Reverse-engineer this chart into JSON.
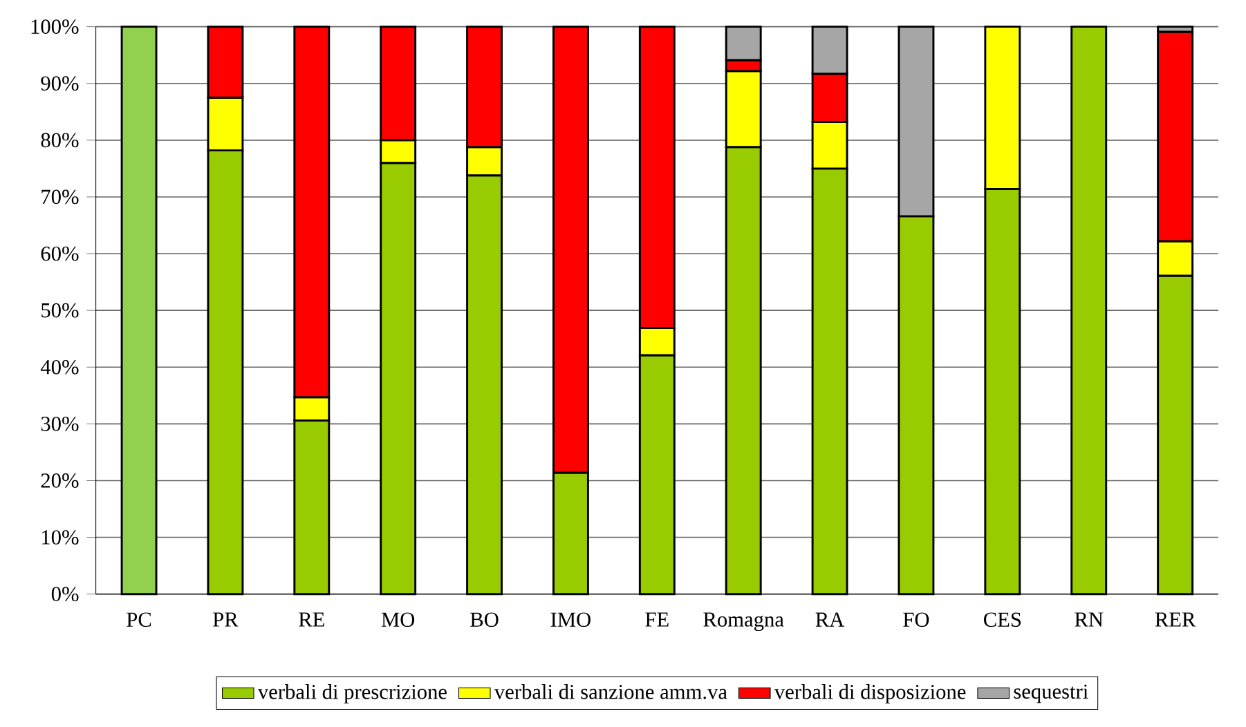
{
  "chart_data": {
    "type": "bar",
    "stacked": true,
    "categories": [
      "PC",
      "PR",
      "RE",
      "MO",
      "BO",
      "IMO",
      "FE",
      "Romagna",
      "RA",
      "FO",
      "CES",
      "RN",
      "RER"
    ],
    "series": [
      {
        "name": "verbali di prescrizione",
        "color": "#99cc00",
        "colors": [
          "#92d050",
          "#99cc00",
          "#99cc00",
          "#99cc00",
          "#99cc00",
          "#99cc00",
          "#99cc00",
          "#99cc00",
          "#99cc00",
          "#99cc00",
          "#99cc00",
          "#99cc00",
          "#99cc00"
        ],
        "values": [
          100,
          78.2,
          30.6,
          76.0,
          73.8,
          21.4,
          42.1,
          78.8,
          75.0,
          66.6,
          71.4,
          100,
          56.1
        ]
      },
      {
        "name": "verbali di sanzione amm.va",
        "color": "#ffff00",
        "values": [
          0,
          9.3,
          4.1,
          4.0,
          5.0,
          0,
          4.8,
          13.4,
          8.2,
          0,
          28.6,
          0,
          6.1
        ]
      },
      {
        "name": "verbali di disposizione",
        "color": "#ff0000",
        "values": [
          0,
          12.5,
          65.3,
          20.0,
          21.2,
          78.6,
          53.1,
          1.9,
          8.5,
          0,
          0,
          0,
          36.9
        ]
      },
      {
        "name": "sequestri",
        "color": "#a6a6a6",
        "values": [
          0,
          0,
          0,
          0,
          0,
          0,
          0,
          5.9,
          8.3,
          33.4,
          0,
          0,
          0.9
        ]
      }
    ],
    "ylim": [
      0,
      100
    ],
    "yticks": [
      {
        "value": 0,
        "label": "0%"
      },
      {
        "value": 10,
        "label": "10%"
      },
      {
        "value": 20,
        "label": "20%"
      },
      {
        "value": 30,
        "label": "30%"
      },
      {
        "value": 40,
        "label": "40%"
      },
      {
        "value": 50,
        "label": "50%"
      },
      {
        "value": 60,
        "label": "60%"
      },
      {
        "value": 70,
        "label": "70%"
      },
      {
        "value": 80,
        "label": "80%"
      },
      {
        "value": 90,
        "label": "90%"
      },
      {
        "value": 100,
        "label": "100%"
      }
    ],
    "grid": "y",
    "legend": "bottom"
  }
}
